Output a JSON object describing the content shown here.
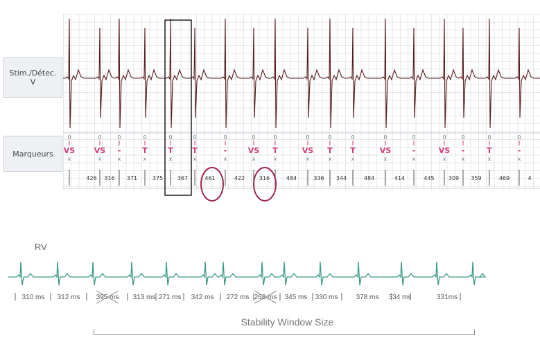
{
  "stim_panel": {
    "line1": "Stim./Détec.",
    "line2": "V"
  },
  "markers_panel": {
    "label": "Marqueurs"
  },
  "markers": [
    {
      "label": "VS",
      "type": "VS"
    },
    {
      "label": "VS",
      "type": "VS"
    },
    {
      "label": "-",
      "type": "dash"
    },
    {
      "label": "T",
      "type": "T"
    },
    {
      "label": "T",
      "type": "T"
    },
    {
      "label": "T",
      "type": "T"
    },
    {
      "label": "-",
      "type": "dash"
    },
    {
      "label": "VS",
      "type": "VS"
    },
    {
      "label": "T",
      "type": "T"
    },
    {
      "label": "VS",
      "type": "VS"
    },
    {
      "label": "T",
      "type": "T"
    },
    {
      "label": "T",
      "type": "T"
    },
    {
      "label": "VS",
      "type": "VS"
    },
    {
      "label": "-",
      "type": "dash"
    },
    {
      "label": "VS",
      "type": "VS"
    },
    {
      "label": "-",
      "type": "dash"
    },
    {
      "label": "T",
      "type": "T"
    },
    {
      "label": "-",
      "type": "dash"
    }
  ],
  "intervals": [
    "426",
    "316",
    "371",
    "375",
    "367",
    "461",
    "422",
    "316",
    "484",
    "336",
    "344",
    "484",
    "414",
    "445",
    "309",
    "359",
    "469",
    "4"
  ],
  "rv": {
    "label": "RV",
    "intervals": [
      "310 ms",
      "312 ms",
      "395 ms",
      "313 ms",
      "271 ms",
      "342 ms",
      "272 ms",
      "268 ms",
      "345 ms",
      "330 ms",
      "378 ms",
      "334 ms",
      "331ms"
    ],
    "crossed": [
      false,
      false,
      true,
      false,
      false,
      false,
      false,
      true,
      false,
      false,
      false,
      false,
      false
    ]
  },
  "stability": {
    "title": "Stability Window Size"
  },
  "colors": {
    "egm_trace": "#5a1a1a",
    "marker_pink": "#d23c7a",
    "rv_trace": "#3c9a88",
    "circle": "#a0284a",
    "highlight_box": "#111111",
    "cross": "#999999"
  }
}
